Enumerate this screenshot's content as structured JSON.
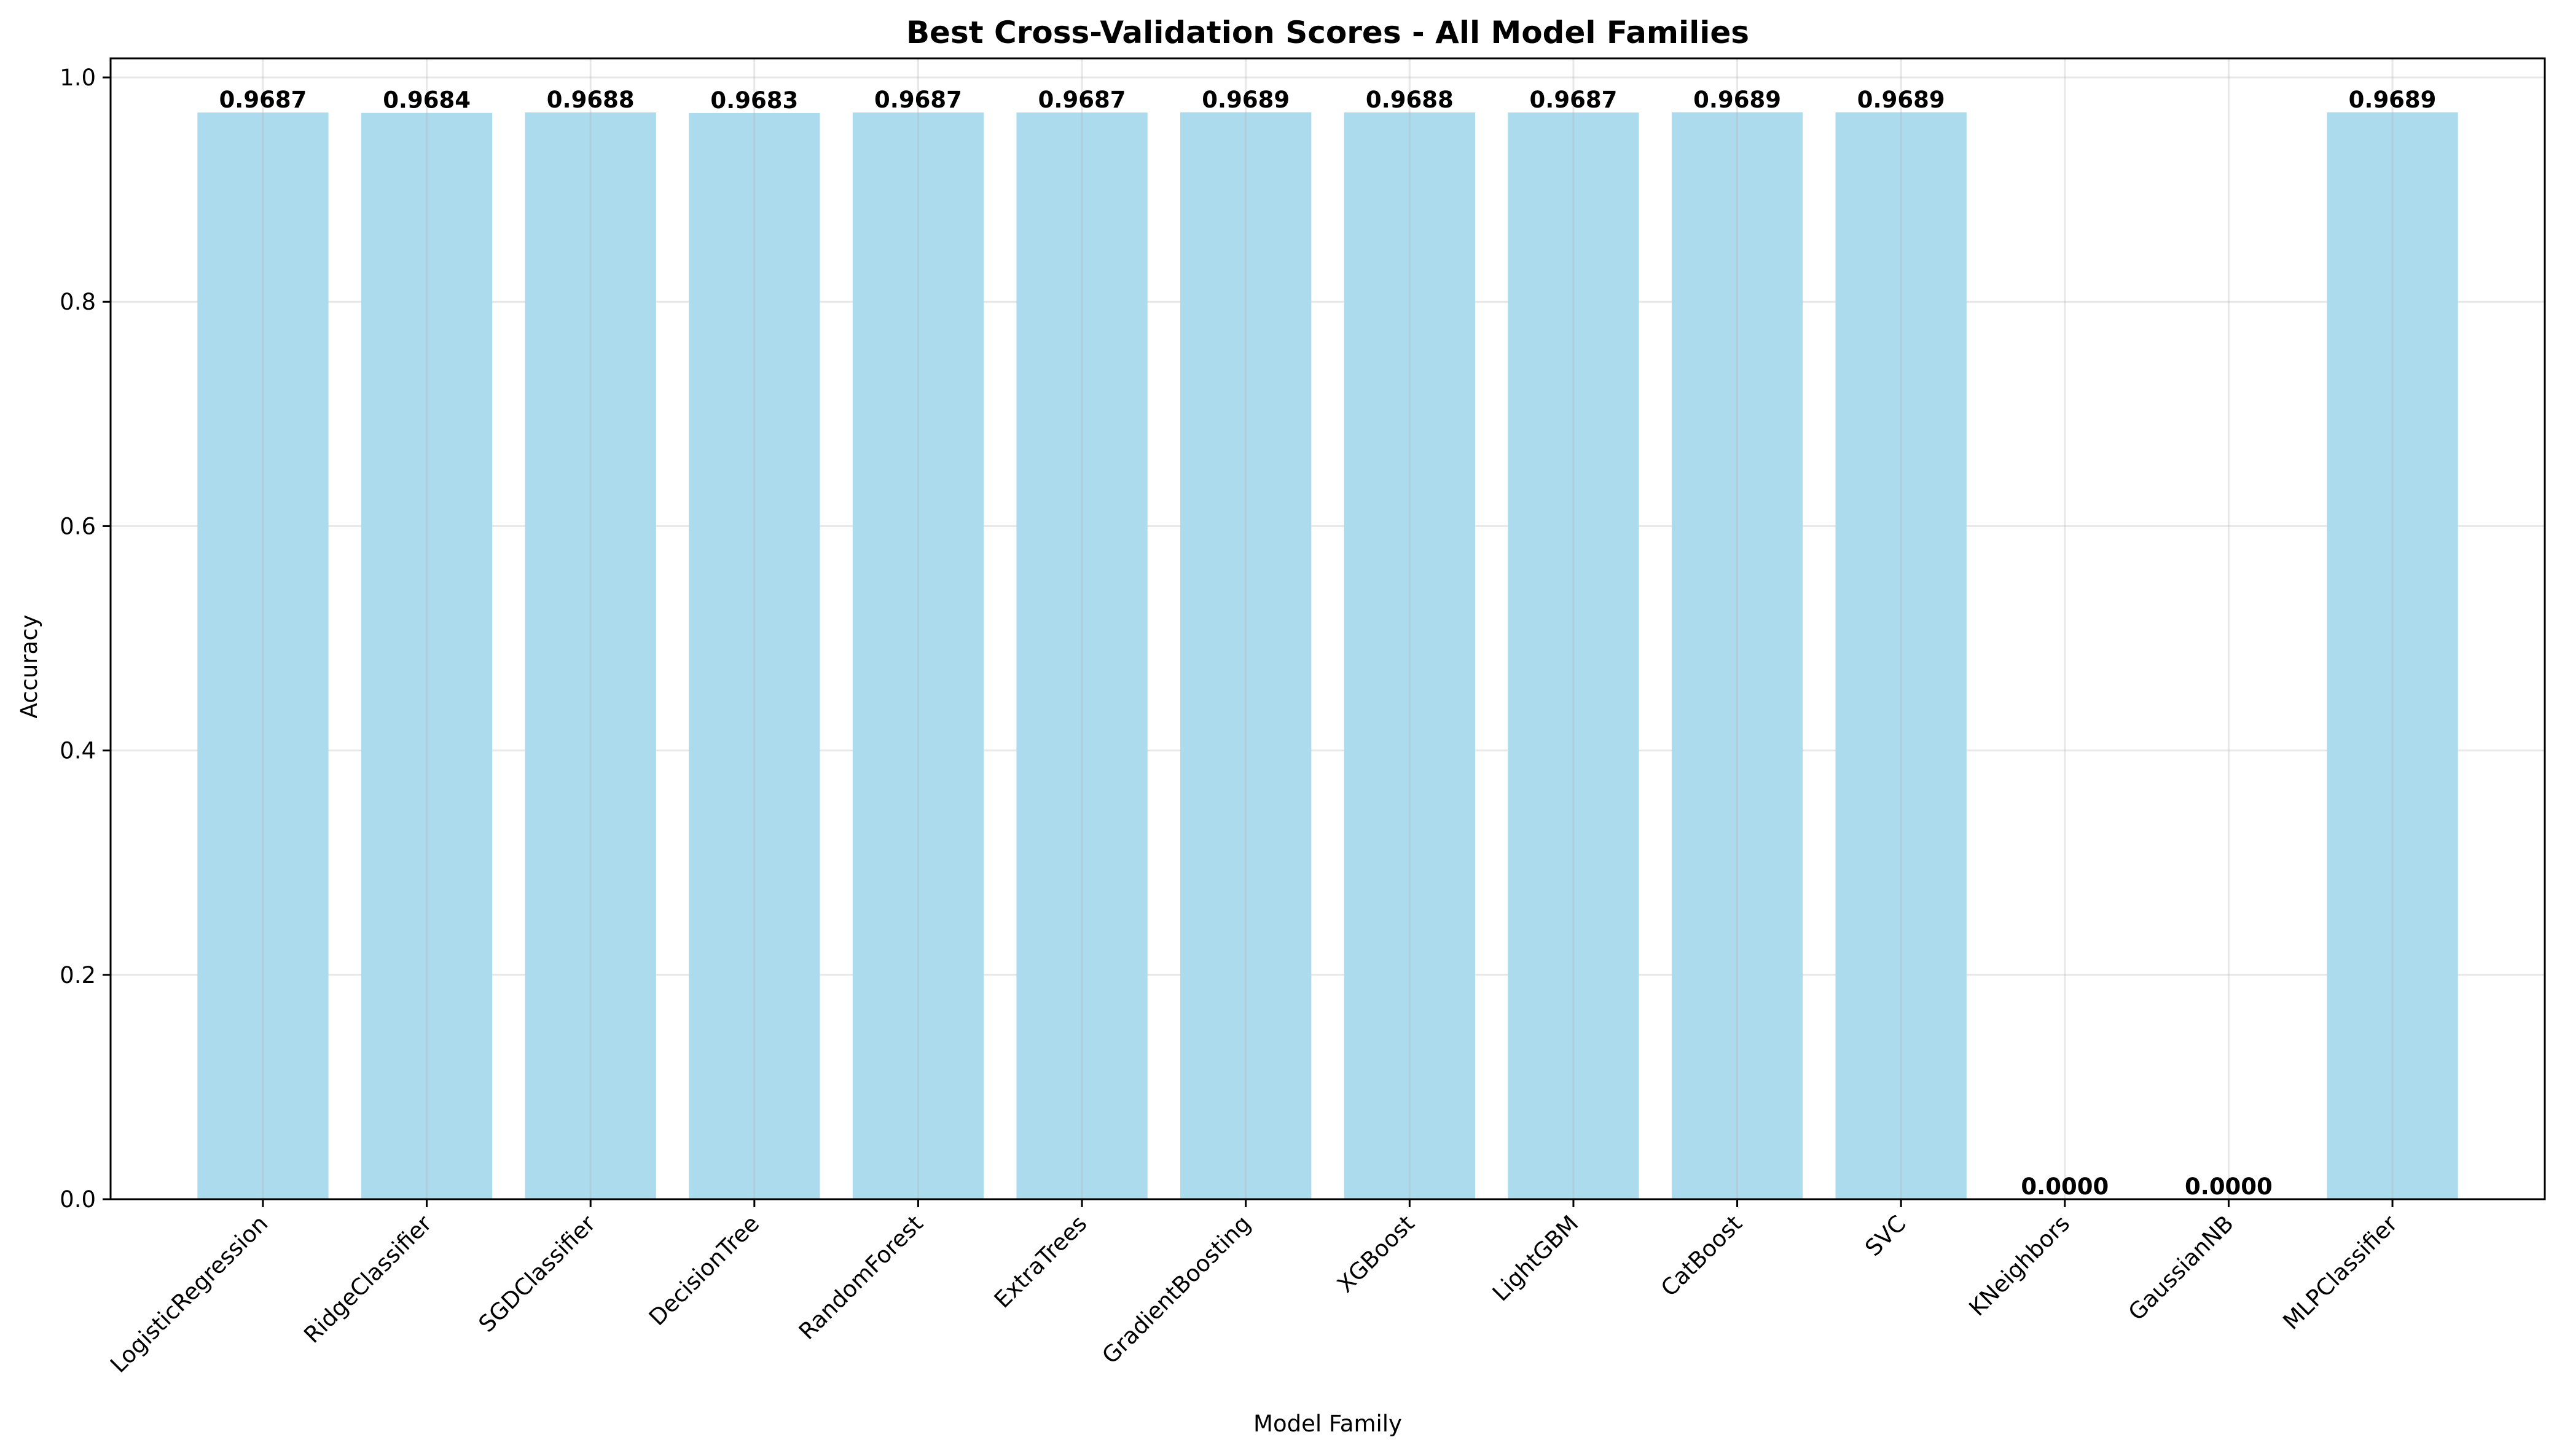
{
  "chart_data": {
    "type": "bar",
    "title": "Best Cross-Validation Scores - All Model Families",
    "xlabel": "Model Family",
    "ylabel": "Accuracy",
    "categories": [
      "LogisticRegression",
      "RidgeClassifier",
      "SGDClassifier",
      "DecisionTree",
      "RandomForest",
      "ExtraTrees",
      "GradientBoosting",
      "XGBoost",
      "LightGBM",
      "CatBoost",
      "SVC",
      "KNeighbors",
      "GaussianNB",
      "MLPClassifier"
    ],
    "values": [
      0.9687,
      0.9684,
      0.9688,
      0.9683,
      0.9687,
      0.9687,
      0.9689,
      0.9688,
      0.9687,
      0.9689,
      0.9689,
      0.0,
      0.0,
      0.9689
    ],
    "value_labels": [
      "0.9687",
      "0.9684",
      "0.9688",
      "0.9683",
      "0.9687",
      "0.9687",
      "0.9689",
      "0.9688",
      "0.9687",
      "0.9689",
      "0.9689",
      "0.0000",
      "0.0000",
      "0.9689"
    ],
    "yticks": [
      0.0,
      0.2,
      0.4,
      0.6,
      0.8,
      1.0
    ],
    "ytick_labels": [
      "0.0",
      "0.2",
      "0.4",
      "0.6",
      "0.8",
      "1.0"
    ],
    "ylim": [
      0,
      1.017
    ],
    "grid": true,
    "bar_color": "#ADDBEE",
    "legend": "none"
  }
}
